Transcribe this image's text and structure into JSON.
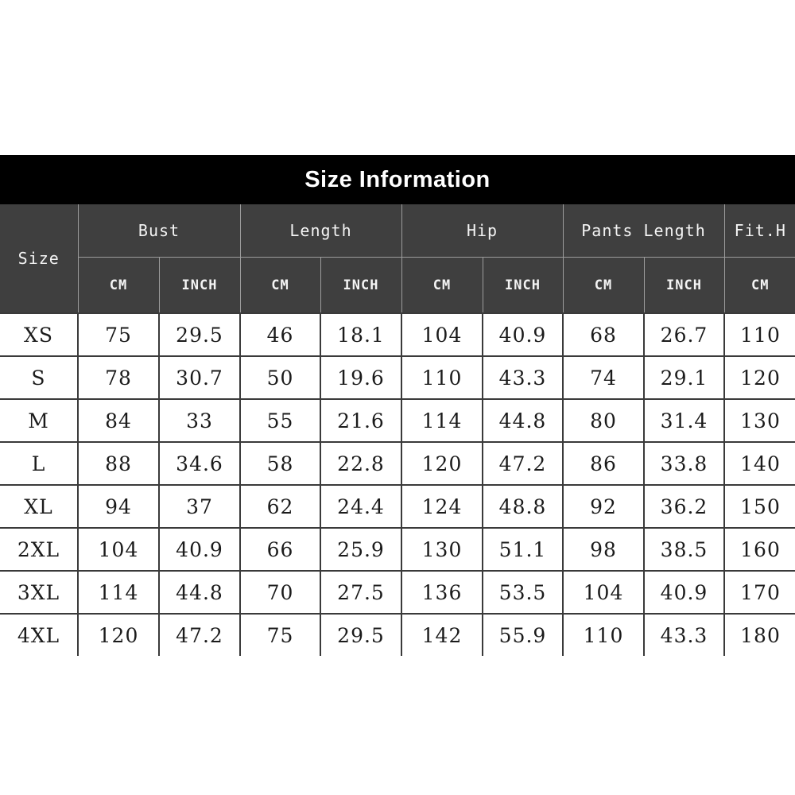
{
  "banner": {
    "title": "Size Information"
  },
  "colors": {
    "banner_bg": "#000000",
    "banner_text": "#ffffff",
    "header_bg": "#3f3f3f",
    "header_border": "#9c9c9c",
    "header_text": "#f4f4f4",
    "body_border": "#3a3a3a",
    "body_text": "#1b1b1b",
    "page_bg": "#ffffff"
  },
  "chart_data": {
    "type": "table",
    "title": "Size Information",
    "row_header": "Size",
    "column_groups": [
      {
        "label": "Bust",
        "units": [
          "CM",
          "INCH"
        ]
      },
      {
        "label": "Length",
        "units": [
          "CM",
          "INCH"
        ]
      },
      {
        "label": "Hip",
        "units": [
          "CM",
          "INCH"
        ]
      },
      {
        "label": "Pants Length",
        "units": [
          "CM",
          "INCH"
        ]
      },
      {
        "label": "Fit.H",
        "units": [
          "CM"
        ]
      }
    ],
    "rows": [
      {
        "size": "XS",
        "values": [
          "75",
          "29.5",
          "46",
          "18.1",
          "104",
          "40.9",
          "68",
          "26.7",
          "110"
        ]
      },
      {
        "size": "S",
        "values": [
          "78",
          "30.7",
          "50",
          "19.6",
          "110",
          "43.3",
          "74",
          "29.1",
          "120"
        ]
      },
      {
        "size": "M",
        "values": [
          "84",
          "33",
          "55",
          "21.6",
          "114",
          "44.8",
          "80",
          "31.4",
          "130"
        ]
      },
      {
        "size": "L",
        "values": [
          "88",
          "34.6",
          "58",
          "22.8",
          "120",
          "47.2",
          "86",
          "33.8",
          "140"
        ]
      },
      {
        "size": "XL",
        "values": [
          "94",
          "37",
          "62",
          "24.4",
          "124",
          "48.8",
          "92",
          "36.2",
          "150"
        ]
      },
      {
        "size": "2XL",
        "values": [
          "104",
          "40.9",
          "66",
          "25.9",
          "130",
          "51.1",
          "98",
          "38.5",
          "160"
        ]
      },
      {
        "size": "3XL",
        "values": [
          "114",
          "44.8",
          "70",
          "27.5",
          "136",
          "53.5",
          "104",
          "40.9",
          "170"
        ]
      },
      {
        "size": "4XL",
        "values": [
          "120",
          "47.2",
          "75",
          "29.5",
          "142",
          "55.9",
          "110",
          "43.3",
          "180"
        ]
      }
    ]
  }
}
